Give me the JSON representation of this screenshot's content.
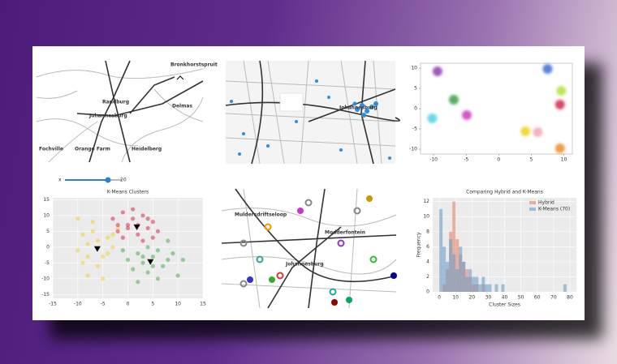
{
  "maps": [
    {
      "labels": [
        "Bronkhorstspruit",
        "Randburg",
        "Johannesburg",
        "Delmas",
        "Fochville",
        "Orange Farm",
        "Heidelberg"
      ]
    },
    {
      "labels": [
        "Johannesburg"
      ]
    },
    {
      "labels": [
        "Muldersdriftseloop",
        "Modderfontein",
        "Johannesburg"
      ]
    }
  ],
  "slider": {
    "label": "x",
    "value": "20"
  },
  "chart_data": [
    {
      "type": "scatter",
      "grid": false,
      "xlim": [
        -12,
        11.3
      ],
      "xticks": [
        -10,
        -5,
        0,
        5,
        10
      ],
      "ylim": [
        -11.2,
        11.2
      ],
      "yticks": [
        -10,
        -5,
        0,
        5,
        10
      ],
      "series": [
        {
          "color": "#8e3fb0",
          "x": [
            -9.4
          ],
          "values": [
            9.2
          ]
        },
        {
          "color": "#3b6fd8",
          "x": [
            7.5
          ],
          "values": [
            9.8
          ]
        },
        {
          "color": "#b6e23a",
          "x": [
            9.6
          ],
          "values": [
            4.4
          ]
        },
        {
          "color": "#d62a4e",
          "x": [
            9.4
          ],
          "values": [
            1.0
          ]
        },
        {
          "color": "#3aa04a",
          "x": [
            -6.9
          ],
          "values": [
            2.2
          ]
        },
        {
          "color": "#4fd2e6",
          "x": [
            -10.2
          ],
          "values": [
            -2.4
          ]
        },
        {
          "color": "#d13bc0",
          "x": [
            -4.9
          ],
          "values": [
            -1.6
          ]
        },
        {
          "color": "#f2d21a",
          "x": [
            4.1
          ],
          "values": [
            -5.6
          ]
        },
        {
          "color": "#f6a6b6",
          "x": [
            6.0
          ],
          "values": [
            -5.8
          ]
        },
        {
          "color": "#f08a2a",
          "x": [
            9.4
          ],
          "values": [
            -9.8
          ]
        }
      ]
    },
    {
      "type": "scatter",
      "title": "K-Means Clusters",
      "grid": true,
      "xlim": [
        -15,
        15
      ],
      "xticks": [
        -15,
        -10,
        -5,
        0,
        5,
        10,
        15
      ],
      "ylim": [
        -16.2,
        15.6
      ],
      "yticks": [
        -15,
        -10,
        -5,
        0,
        5,
        10,
        15
      ],
      "series": [
        {
          "color": "#f5d033",
          "x": [
            -10,
            -9,
            -8,
            -7,
            -6,
            -5,
            -4,
            -3,
            -2,
            -9,
            -8,
            -6,
            -4,
            -10,
            -7,
            -5,
            -3,
            -8
          ],
          "values": [
            9,
            4,
            1,
            5,
            2,
            -3,
            3,
            0,
            6,
            -5,
            -9,
            -6,
            -2,
            -1,
            8,
            -10,
            4,
            -3
          ]
        },
        {
          "color": "#d6304f",
          "x": [
            -3,
            -2,
            -1,
            0,
            1,
            2,
            3,
            4,
            5,
            6,
            -1,
            1,
            3,
            0,
            2,
            4,
            -2,
            5
          ],
          "values": [
            9,
            5,
            11,
            7,
            9,
            4,
            10,
            6,
            8,
            5,
            3,
            12,
            2,
            6,
            7,
            9,
            7,
            3
          ]
        },
        {
          "color": "#4caf50",
          "x": [
            -1,
            0,
            1,
            2,
            3,
            4,
            5,
            6,
            7,
            8,
            9,
            10,
            2,
            4,
            6,
            8,
            3,
            5,
            11
          ],
          "values": [
            -1,
            -4,
            -7,
            -2,
            -5,
            -8,
            -3,
            -1,
            -6,
            -4,
            -2,
            -9,
            -11,
            0,
            -10,
            2,
            -3,
            -6,
            -4
          ]
        },
        {
          "color": "#000000",
          "marker": "triangle",
          "x": [
            1.8,
            -6.1,
            4.5
          ],
          "values": [
            6.4,
            -0.5,
            -4.6
          ]
        }
      ]
    },
    {
      "type": "histogram",
      "title": "Comparing Hybrid and K-Means",
      "grid": true,
      "legend": "upper right",
      "xlabel": "Cluster Sizes",
      "ylabel": "Frequency",
      "xlim": [
        -4,
        84
      ],
      "xticks": [
        0,
        10,
        20,
        30,
        40,
        50,
        60,
        70,
        80
      ],
      "ylim": [
        0,
        12.5
      ],
      "yticks": [
        0,
        2,
        4,
        6,
        8,
        10,
        12
      ],
      "bins": [
        0,
        2,
        4,
        6,
        8,
        10,
        12,
        14,
        16,
        18,
        20,
        22,
        24,
        26,
        28,
        30,
        32,
        34,
        36,
        38,
        40,
        42,
        44,
        46,
        48,
        50,
        52,
        54,
        56,
        58,
        60,
        62,
        64,
        66,
        68,
        70,
        72,
        74,
        76,
        78,
        80
      ],
      "series": [
        {
          "name": "Hybrid",
          "color": "#e8836a",
          "values": [
            0,
            1,
            3,
            8,
            12,
            7,
            5,
            4,
            3,
            2,
            1,
            1,
            0,
            1,
            0,
            0,
            0,
            0,
            0,
            0,
            0,
            0,
            0,
            0,
            0,
            0,
            0,
            0,
            0,
            0,
            0,
            0,
            0,
            0,
            0,
            0,
            0,
            0,
            0,
            0
          ]
        },
        {
          "name": "K-Means (70)",
          "color": "#6a9ec8",
          "values": [
            11,
            6,
            4,
            7,
            5,
            3,
            6,
            4,
            2,
            3,
            2,
            2,
            1,
            2,
            1,
            1,
            0,
            1,
            0,
            1,
            0,
            0,
            0,
            0,
            0,
            0,
            0,
            0,
            0,
            0,
            0,
            0,
            0,
            0,
            0,
            0,
            0,
            0,
            1,
            0
          ]
        }
      ]
    }
  ]
}
